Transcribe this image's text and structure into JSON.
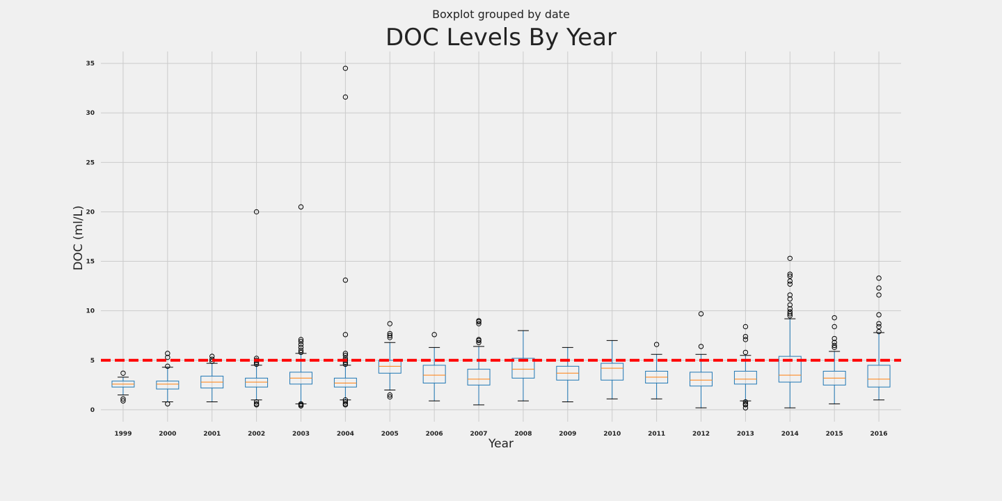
{
  "chart_data": {
    "type": "boxplot",
    "suptitle": "Boxplot grouped by date",
    "title": "DOC Levels By Year",
    "xlabel": "Year",
    "ylabel": "DOC (ml/L)",
    "ylim": [
      -1.2,
      36.2
    ],
    "yticks": [
      0,
      5,
      10,
      15,
      20,
      25,
      30,
      35
    ],
    "grid": true,
    "reference_line": {
      "y": 5,
      "color": "#ff0000",
      "style": "dashed"
    },
    "colors": {
      "box": "#1f77b4",
      "median": "#ff7f0e",
      "whisker": "#1f77b4",
      "cap": "#000000",
      "flier": "#000000",
      "background": "#f0f0f0",
      "grid": "#cbcbcb"
    },
    "categories": [
      "1999",
      "2000",
      "2001",
      "2002",
      "2003",
      "2004",
      "2005",
      "2006",
      "2007",
      "2008",
      "2009",
      "2010",
      "2011",
      "2012",
      "2013",
      "2014",
      "2015",
      "2016"
    ],
    "boxes": [
      {
        "year": "1999",
        "whislo": 1.5,
        "q1": 2.3,
        "med": 2.6,
        "q3": 2.9,
        "whishi": 3.3,
        "fliers": [
          3.7,
          1.1,
          0.9
        ]
      },
      {
        "year": "2000",
        "whislo": 0.8,
        "q1": 2.1,
        "med": 2.6,
        "q3": 2.9,
        "whishi": 4.3,
        "fliers": [
          4.4,
          5.3,
          5.7,
          0.6
        ]
      },
      {
        "year": "2001",
        "whislo": 0.8,
        "q1": 2.2,
        "med": 2.8,
        "q3": 3.4,
        "whishi": 4.7,
        "fliers": [
          4.9,
          5.1,
          5.4
        ]
      },
      {
        "year": "2002",
        "whislo": 1.0,
        "q1": 2.3,
        "med": 2.8,
        "q3": 3.2,
        "whishi": 4.5,
        "fliers": [
          4.6,
          4.8,
          5.0,
          5.2,
          20.0,
          0.8,
          0.6,
          0.5
        ]
      },
      {
        "year": "2003",
        "whislo": 0.6,
        "q1": 2.6,
        "med": 3.2,
        "q3": 3.8,
        "whishi": 5.7,
        "fliers": [
          5.8,
          6.0,
          6.3,
          6.6,
          6.9,
          7.1,
          20.5,
          0.6,
          0.5,
          0.4
        ]
      },
      {
        "year": "2004",
        "whislo": 1.0,
        "q1": 2.3,
        "med": 2.7,
        "q3": 3.2,
        "whishi": 4.5,
        "fliers": [
          4.6,
          4.8,
          5.0,
          5.2,
          5.5,
          5.7,
          7.6,
          13.1,
          31.6,
          34.5,
          1.0,
          0.8,
          0.6,
          0.5
        ]
      },
      {
        "year": "2005",
        "whislo": 2.0,
        "q1": 3.7,
        "med": 4.4,
        "q3": 5.0,
        "whishi": 6.8,
        "fliers": [
          7.3,
          7.5,
          7.7,
          8.7,
          1.5,
          1.3
        ]
      },
      {
        "year": "2006",
        "whislo": 0.9,
        "q1": 2.7,
        "med": 3.5,
        "q3": 4.5,
        "whishi": 6.3,
        "fliers": [
          7.6
        ]
      },
      {
        "year": "2007",
        "whislo": 0.5,
        "q1": 2.5,
        "med": 3.1,
        "q3": 4.1,
        "whishi": 6.4,
        "fliers": [
          6.8,
          7.0,
          7.1,
          8.7,
          8.9,
          9.0
        ]
      },
      {
        "year": "2008",
        "whislo": 0.9,
        "q1": 3.2,
        "med": 4.1,
        "q3": 5.2,
        "whishi": 8.0,
        "fliers": []
      },
      {
        "year": "2009",
        "whislo": 0.8,
        "q1": 3.0,
        "med": 3.7,
        "q3": 4.4,
        "whishi": 6.3,
        "fliers": []
      },
      {
        "year": "2010",
        "whislo": 1.1,
        "q1": 3.0,
        "med": 4.2,
        "q3": 4.7,
        "whishi": 7.0,
        "fliers": []
      },
      {
        "year": "2011",
        "whislo": 1.1,
        "q1": 2.7,
        "med": 3.3,
        "q3": 3.9,
        "whishi": 5.6,
        "fliers": [
          6.6
        ]
      },
      {
        "year": "2012",
        "whislo": 0.2,
        "q1": 2.4,
        "med": 3.0,
        "q3": 3.8,
        "whishi": 5.6,
        "fliers": [
          6.4,
          9.7
        ]
      },
      {
        "year": "2013",
        "whislo": 0.9,
        "q1": 2.6,
        "med": 3.1,
        "q3": 3.9,
        "whishi": 5.5,
        "fliers": [
          5.8,
          7.1,
          7.4,
          8.4,
          0.8,
          0.6,
          0.5,
          0.2
        ]
      },
      {
        "year": "2014",
        "whislo": 0.2,
        "q1": 2.8,
        "med": 3.5,
        "q3": 5.4,
        "whishi": 9.2,
        "fliers": [
          9.5,
          9.7,
          9.9,
          10.2,
          10.6,
          11.2,
          11.6,
          12.7,
          13.0,
          13.5,
          13.7,
          15.3
        ]
      },
      {
        "year": "2015",
        "whislo": 0.6,
        "q1": 2.5,
        "med": 3.2,
        "q3": 3.9,
        "whishi": 5.9,
        "fliers": [
          6.3,
          6.5,
          6.8,
          7.2,
          8.4,
          9.3
        ]
      },
      {
        "year": "2016",
        "whislo": 1.0,
        "q1": 2.3,
        "med": 3.1,
        "q3": 4.5,
        "whishi": 7.8,
        "fliers": [
          7.9,
          8.4,
          8.7,
          9.6,
          11.6,
          12.3,
          13.3
        ]
      }
    ]
  }
}
